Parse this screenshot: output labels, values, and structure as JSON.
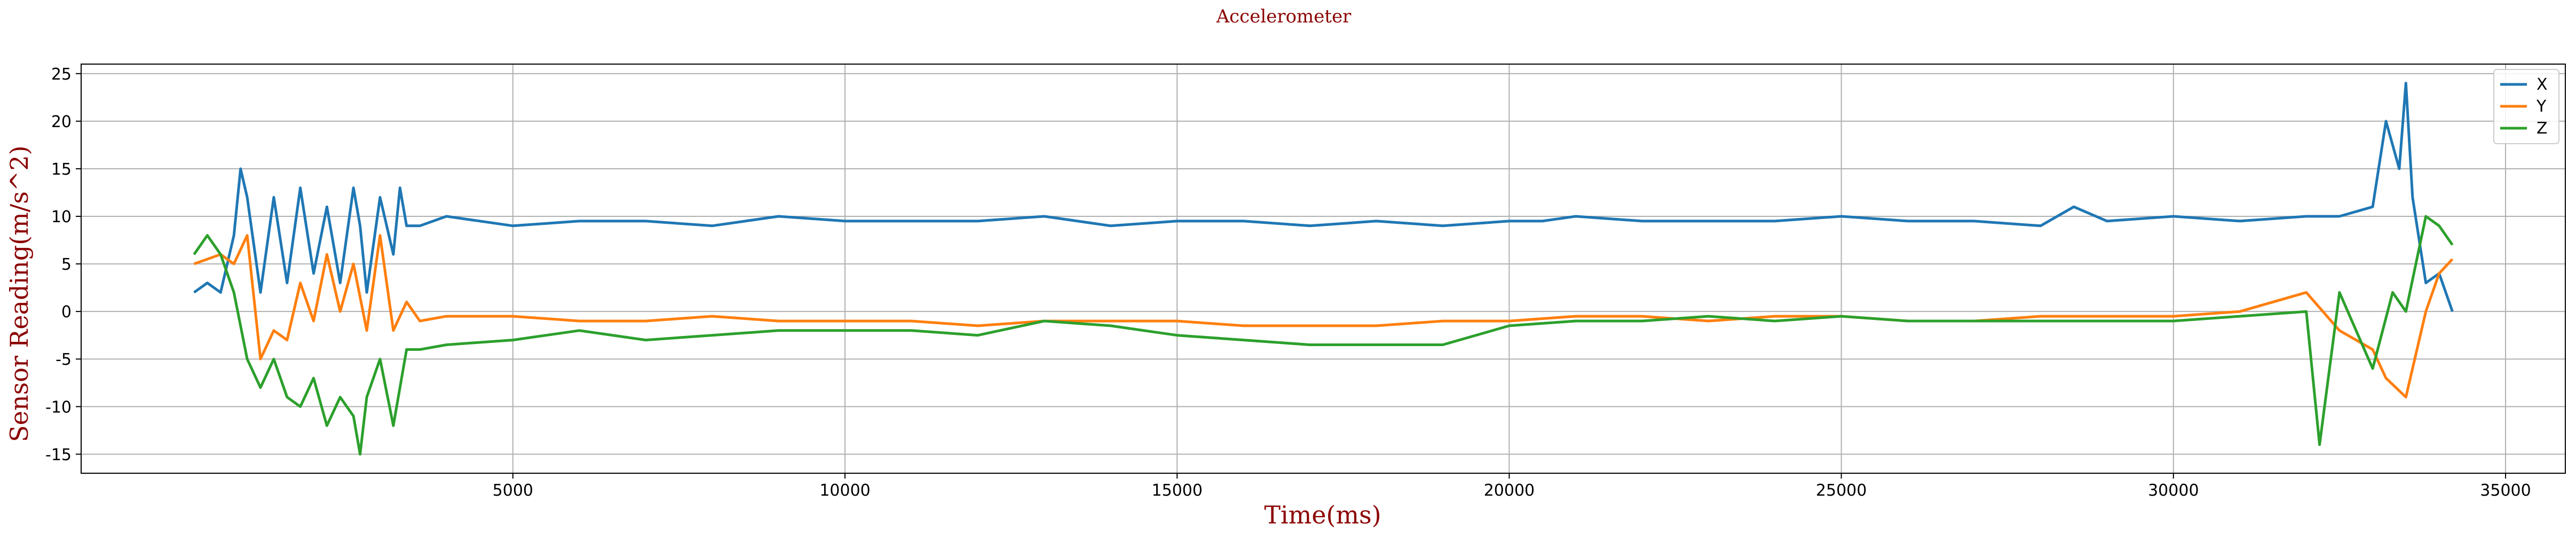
{
  "chart_data": {
    "type": "line",
    "title": "Accelerometer",
    "xlabel": "Time(ms)",
    "ylabel": "Sensor Reading(m/s^2)",
    "xlim": [
      -1500,
      35900
    ],
    "ylim": [
      -17,
      26
    ],
    "x_ticks": [
      5000,
      10000,
      15000,
      20000,
      25000,
      30000,
      35000
    ],
    "y_ticks": [
      -15,
      -10,
      -5,
      0,
      5,
      10,
      15,
      20,
      25
    ],
    "grid": true,
    "legend_position": "top-right",
    "series": [
      {
        "name": "X",
        "color": "#1f77b4",
        "x": [
          200,
          400,
          600,
          800,
          900,
          1000,
          1200,
          1400,
          1600,
          1800,
          2000,
          2200,
          2400,
          2600,
          2700,
          2800,
          3000,
          3200,
          3300,
          3400,
          3600,
          4000,
          5000,
          6000,
          7000,
          8000,
          9000,
          10000,
          11000,
          12000,
          13000,
          14000,
          15000,
          16000,
          17000,
          18000,
          19000,
          20000,
          20500,
          21000,
          22000,
          23000,
          24000,
          25000,
          26000,
          27000,
          28000,
          28500,
          29000,
          30000,
          31000,
          32000,
          32500,
          33000,
          33200,
          33400,
          33500,
          33600,
          33800,
          34000,
          34200
        ],
        "values": [
          2,
          3,
          2,
          8,
          15,
          12,
          2,
          12,
          3,
          13,
          4,
          11,
          3,
          13,
          9,
          2,
          12,
          6,
          13,
          9,
          9,
          10,
          9,
          9.5,
          9.5,
          9,
          10,
          9.5,
          9.5,
          9.5,
          10,
          9,
          9.5,
          9.5,
          9,
          9.5,
          9,
          9.5,
          9.5,
          10,
          9.5,
          9.5,
          9.5,
          10,
          9.5,
          9.5,
          9,
          11,
          9.5,
          10,
          9.5,
          10,
          10,
          11,
          20,
          15,
          24,
          12,
          3,
          4,
          0
        ]
      },
      {
        "name": "Y",
        "color": "#ff7f0e",
        "x": [
          200,
          400,
          600,
          800,
          1000,
          1200,
          1400,
          1600,
          1800,
          2000,
          2200,
          2400,
          2600,
          2800,
          3000,
          3200,
          3400,
          3600,
          4000,
          5000,
          6000,
          7000,
          8000,
          9000,
          10000,
          11000,
          12000,
          13000,
          14000,
          15000,
          16000,
          17000,
          18000,
          19000,
          20000,
          21000,
          22000,
          23000,
          24000,
          25000,
          26000,
          27000,
          28000,
          29000,
          30000,
          31000,
          32000,
          32500,
          33000,
          33200,
          33500,
          33800,
          34000,
          34200
        ],
        "values": [
          5,
          5.5,
          6,
          5,
          8,
          -5,
          -2,
          -3,
          3,
          -1,
          6,
          0,
          5,
          -2,
          8,
          -2,
          1,
          -1,
          -0.5,
          -0.5,
          -1,
          -1,
          -0.5,
          -1,
          -1,
          -1,
          -1.5,
          -1,
          -1,
          -1,
          -1.5,
          -1.5,
          -1.5,
          -1,
          -1,
          -0.5,
          -0.5,
          -1,
          -0.5,
          -0.5,
          -1,
          -1,
          -0.5,
          -0.5,
          -0.5,
          0,
          2,
          -2,
          -4,
          -7,
          -9,
          0,
          4,
          5.5
        ]
      },
      {
        "name": "Z",
        "color": "#2ca02c",
        "x": [
          200,
          400,
          600,
          800,
          1000,
          1200,
          1400,
          1600,
          1800,
          2000,
          2200,
          2400,
          2600,
          2700,
          2800,
          3000,
          3200,
          3400,
          3600,
          4000,
          5000,
          6000,
          7000,
          8000,
          9000,
          10000,
          11000,
          12000,
          13000,
          14000,
          15000,
          16000,
          17000,
          18000,
          19000,
          20000,
          21000,
          22000,
          23000,
          24000,
          25000,
          26000,
          27000,
          28000,
          29000,
          30000,
          31000,
          32000,
          32200,
          32500,
          33000,
          33300,
          33500,
          33800,
          34000,
          34200
        ],
        "values": [
          6,
          8,
          6,
          2,
          -5,
          -8,
          -5,
          -9,
          -10,
          -7,
          -12,
          -9,
          -11,
          -15,
          -9,
          -5,
          -12,
          -4,
          -4,
          -3.5,
          -3,
          -2,
          -3,
          -2.5,
          -2,
          -2,
          -2,
          -2.5,
          -1,
          -1.5,
          -2.5,
          -3,
          -3.5,
          -3.5,
          -3.5,
          -1.5,
          -1,
          -1,
          -0.5,
          -1,
          -0.5,
          -1,
          -1,
          -1,
          -1,
          -1,
          -0.5,
          0,
          -14,
          2,
          -6,
          2,
          0,
          10,
          9,
          7
        ]
      }
    ]
  }
}
